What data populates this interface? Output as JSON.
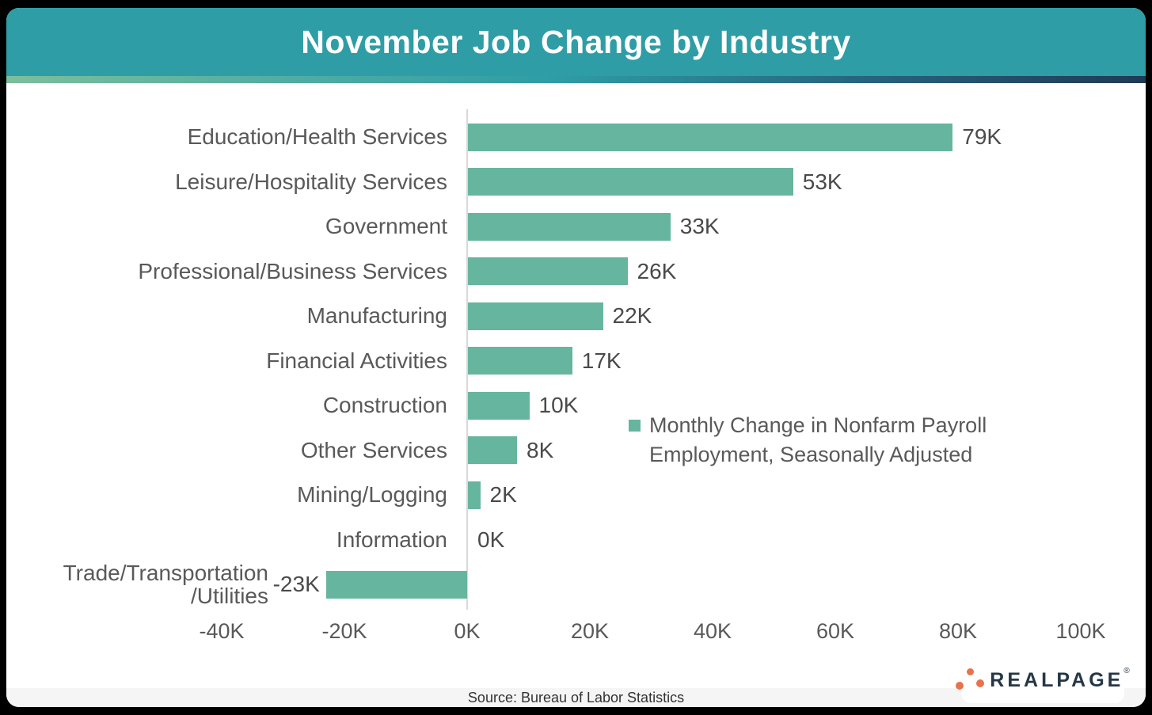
{
  "colors": {
    "frame_bg": "#000000",
    "card_bg": "#FFFFFF",
    "header_bg": "#2E9DA6",
    "title_text": "#FFFFFF",
    "bar": "#66B59E",
    "gradient_left": "#7CBE9C",
    "gradient_mid": "#2E9DA6",
    "gradient_right": "#1F3A56",
    "category_text": "#595959",
    "value_text": "#4A4A4A",
    "axis_line": "#D9D9D9",
    "footer_bg": "#F5F5F5",
    "footer_text": "#333333",
    "logo_text": "#253746",
    "logo_dots": "#E8724C"
  },
  "header": {
    "title": "November Job Change by Industry"
  },
  "chart_data": {
    "type": "bar",
    "orientation": "horizontal",
    "title": "November Job Change by Industry",
    "unit": "thousands of jobs (K)",
    "categories": [
      "Education/Health Services",
      "Leisure/Hospitality Services",
      "Government",
      "Professional/Business Services",
      "Manufacturing",
      "Financial Activities",
      "Construction",
      "Other Services",
      "Mining/Logging",
      "Information",
      "Trade/Transportation/Utilities"
    ],
    "category_display_lines": [
      [
        "Education/Health Services"
      ],
      [
        "Leisure/Hospitality Services"
      ],
      [
        "Government"
      ],
      [
        "Professional/Business Services"
      ],
      [
        "Manufacturing"
      ],
      [
        "Financial Activities"
      ],
      [
        "Construction"
      ],
      [
        "Other Services"
      ],
      [
        "Mining/Logging"
      ],
      [
        "Information"
      ],
      [
        "Trade/Transportation",
        "/Utilities"
      ]
    ],
    "values": [
      79,
      53,
      33,
      26,
      22,
      17,
      10,
      8,
      2,
      0,
      -23
    ],
    "value_labels": [
      "79K",
      "53K",
      "33K",
      "26K",
      "22K",
      "17K",
      "10K",
      "8K",
      "2K",
      "0K",
      "-23K"
    ],
    "xlim": [
      -40,
      100
    ],
    "x_ticks": [
      -40,
      -20,
      0,
      20,
      40,
      60,
      80,
      100
    ],
    "x_tick_labels": [
      "-40K",
      "-20K",
      "0K",
      "20K",
      "40K",
      "60K",
      "80K",
      "100K"
    ],
    "grid": false,
    "legend_label": "Monthly Change in Nonfarm Payroll Employment, Seasonally Adjusted",
    "legend_position": "middle-right"
  },
  "legend": {
    "lines": [
      "Monthly Change in Nonfarm Payroll",
      "Employment, Seasonally Adjusted"
    ]
  },
  "footer": {
    "source": "Source: Bureau of Labor Statistics"
  },
  "logo": {
    "brand": "REALPAGE",
    "trademark": "®"
  }
}
